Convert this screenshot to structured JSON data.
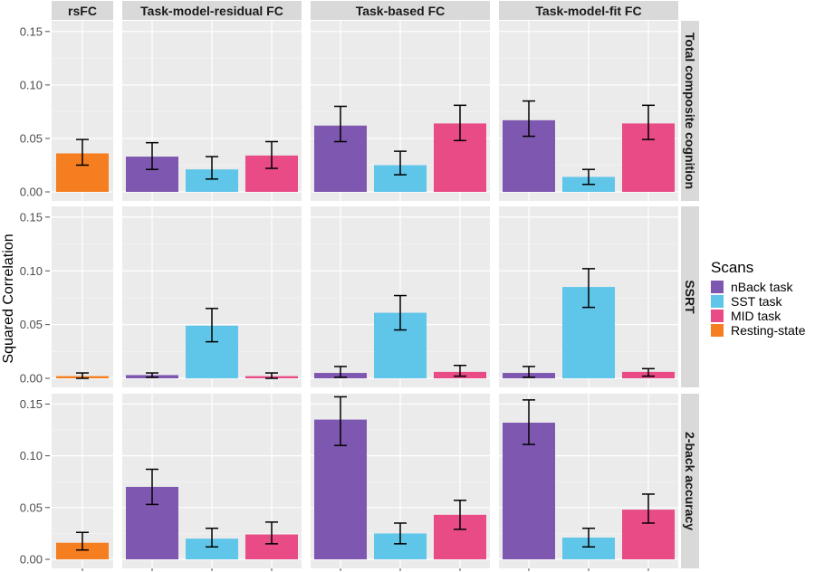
{
  "chart_data": {
    "type": "bar",
    "ylabel": "Squared Correlation",
    "ylim": [
      0,
      0.16
    ],
    "yticks": [
      0.0,
      0.05,
      0.1,
      0.15
    ],
    "ytick_labels": [
      "0.00",
      "0.05",
      "0.10",
      "0.15"
    ],
    "column_facets": [
      "rsFC",
      "Task-model-residual FC",
      "Task-based FC",
      "Task-model-fit FC"
    ],
    "row_facets": [
      "Total composite cognition",
      "SSRT",
      "2-back accuracy"
    ],
    "legend": {
      "title": "Scans",
      "position": "right",
      "items": [
        {
          "name": "nBack task",
          "color": "#7E57B0"
        },
        {
          "name": "SST task",
          "color": "#5FC5E9"
        },
        {
          "name": "MID task",
          "color": "#E84B86"
        },
        {
          "name": "Resting-state",
          "color": "#F57E20"
        }
      ]
    },
    "grid": true,
    "panels": [
      {
        "row": 0,
        "col": 0,
        "bars": [
          {
            "series": "Resting-state",
            "value": 0.036,
            "lo": 0.025,
            "hi": 0.049
          }
        ]
      },
      {
        "row": 0,
        "col": 1,
        "bars": [
          {
            "series": "nBack task",
            "value": 0.033,
            "lo": 0.021,
            "hi": 0.046
          },
          {
            "series": "SST task",
            "value": 0.021,
            "lo": 0.012,
            "hi": 0.033
          },
          {
            "series": "MID task",
            "value": 0.034,
            "lo": 0.022,
            "hi": 0.047
          }
        ]
      },
      {
        "row": 0,
        "col": 2,
        "bars": [
          {
            "series": "nBack task",
            "value": 0.062,
            "lo": 0.047,
            "hi": 0.08
          },
          {
            "series": "SST task",
            "value": 0.025,
            "lo": 0.016,
            "hi": 0.038
          },
          {
            "series": "MID task",
            "value": 0.064,
            "lo": 0.048,
            "hi": 0.081
          }
        ]
      },
      {
        "row": 0,
        "col": 3,
        "bars": [
          {
            "series": "nBack task",
            "value": 0.067,
            "lo": 0.052,
            "hi": 0.085
          },
          {
            "series": "SST task",
            "value": 0.014,
            "lo": 0.007,
            "hi": 0.021
          },
          {
            "series": "MID task",
            "value": 0.064,
            "lo": 0.049,
            "hi": 0.081
          }
        ]
      },
      {
        "row": 1,
        "col": 0,
        "bars": [
          {
            "series": "Resting-state",
            "value": 0.002,
            "lo": 0.0,
            "hi": 0.005
          }
        ]
      },
      {
        "row": 1,
        "col": 1,
        "bars": [
          {
            "series": "nBack task",
            "value": 0.003,
            "lo": 0.001,
            "hi": 0.005
          },
          {
            "series": "SST task",
            "value": 0.049,
            "lo": 0.034,
            "hi": 0.065
          },
          {
            "series": "MID task",
            "value": 0.002,
            "lo": 0.0,
            "hi": 0.005
          }
        ]
      },
      {
        "row": 1,
        "col": 2,
        "bars": [
          {
            "series": "nBack task",
            "value": 0.005,
            "lo": 0.001,
            "hi": 0.011
          },
          {
            "series": "SST task",
            "value": 0.061,
            "lo": 0.045,
            "hi": 0.077
          },
          {
            "series": "MID task",
            "value": 0.006,
            "lo": 0.002,
            "hi": 0.012
          }
        ]
      },
      {
        "row": 1,
        "col": 3,
        "bars": [
          {
            "series": "nBack task",
            "value": 0.005,
            "lo": 0.001,
            "hi": 0.011
          },
          {
            "series": "SST task",
            "value": 0.085,
            "lo": 0.066,
            "hi": 0.102
          },
          {
            "series": "MID task",
            "value": 0.006,
            "lo": 0.002,
            "hi": 0.009
          }
        ]
      },
      {
        "row": 2,
        "col": 0,
        "bars": [
          {
            "series": "Resting-state",
            "value": 0.016,
            "lo": 0.009,
            "hi": 0.026
          }
        ]
      },
      {
        "row": 2,
        "col": 1,
        "bars": [
          {
            "series": "nBack task",
            "value": 0.07,
            "lo": 0.053,
            "hi": 0.087
          },
          {
            "series": "SST task",
            "value": 0.02,
            "lo": 0.012,
            "hi": 0.03
          },
          {
            "series": "MID task",
            "value": 0.024,
            "lo": 0.015,
            "hi": 0.036
          }
        ]
      },
      {
        "row": 2,
        "col": 2,
        "bars": [
          {
            "series": "nBack task",
            "value": 0.135,
            "lo": 0.11,
            "hi": 0.157
          },
          {
            "series": "SST task",
            "value": 0.025,
            "lo": 0.015,
            "hi": 0.035
          },
          {
            "series": "MID task",
            "value": 0.043,
            "lo": 0.029,
            "hi": 0.057
          }
        ]
      },
      {
        "row": 2,
        "col": 3,
        "bars": [
          {
            "series": "nBack task",
            "value": 0.132,
            "lo": 0.111,
            "hi": 0.154
          },
          {
            "series": "SST task",
            "value": 0.021,
            "lo": 0.012,
            "hi": 0.03
          },
          {
            "series": "MID task",
            "value": 0.048,
            "lo": 0.035,
            "hi": 0.063
          }
        ]
      }
    ]
  }
}
